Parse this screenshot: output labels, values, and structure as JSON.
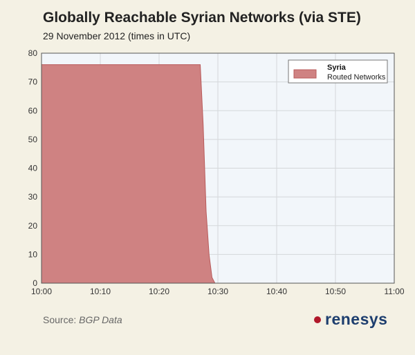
{
  "header": {
    "title": "Globally Reachable Syrian Networks (via STE)",
    "subtitle": "29 November 2012 (times in UTC)"
  },
  "footer": {
    "source_label": "Source:",
    "source_value": "BGP Data",
    "logo_text": "renesys"
  },
  "colors": {
    "background": "#f4f1e4",
    "plot_background": "#f2f6fa",
    "series_fill": "#cf8282",
    "series_stroke": "#b85a5a",
    "logo_dot": "#b0182a",
    "logo_text": "#1d3e6e"
  },
  "chart_data": {
    "type": "area",
    "title": "Globally Reachable Syrian Networks (via STE)",
    "subtitle": "29 November 2012 (times in UTC)",
    "xlabel": "",
    "ylabel": "",
    "x_ticks": [
      "10:00",
      "10:10",
      "10:20",
      "10:30",
      "10:40",
      "10:50",
      "11:00"
    ],
    "x_range": [
      "10:00",
      "11:00"
    ],
    "y_ticks": [
      0,
      10,
      20,
      30,
      40,
      50,
      60,
      70,
      80
    ],
    "ylim": [
      0,
      80
    ],
    "grid": true,
    "legend": {
      "placement": "top-right",
      "title": "Syria",
      "label": "Routed Networks"
    },
    "series": [
      {
        "name": "Syria",
        "points": [
          {
            "x": "10:00",
            "y": 76
          },
          {
            "x": "10:27",
            "y": 76
          },
          {
            "x": "10:27.5",
            "y": 55
          },
          {
            "x": "10:28",
            "y": 25
          },
          {
            "x": "10:28.5",
            "y": 10
          },
          {
            "x": "10:29",
            "y": 2
          },
          {
            "x": "10:29.5",
            "y": 0
          },
          {
            "x": "11:00",
            "y": 0
          }
        ]
      }
    ]
  }
}
